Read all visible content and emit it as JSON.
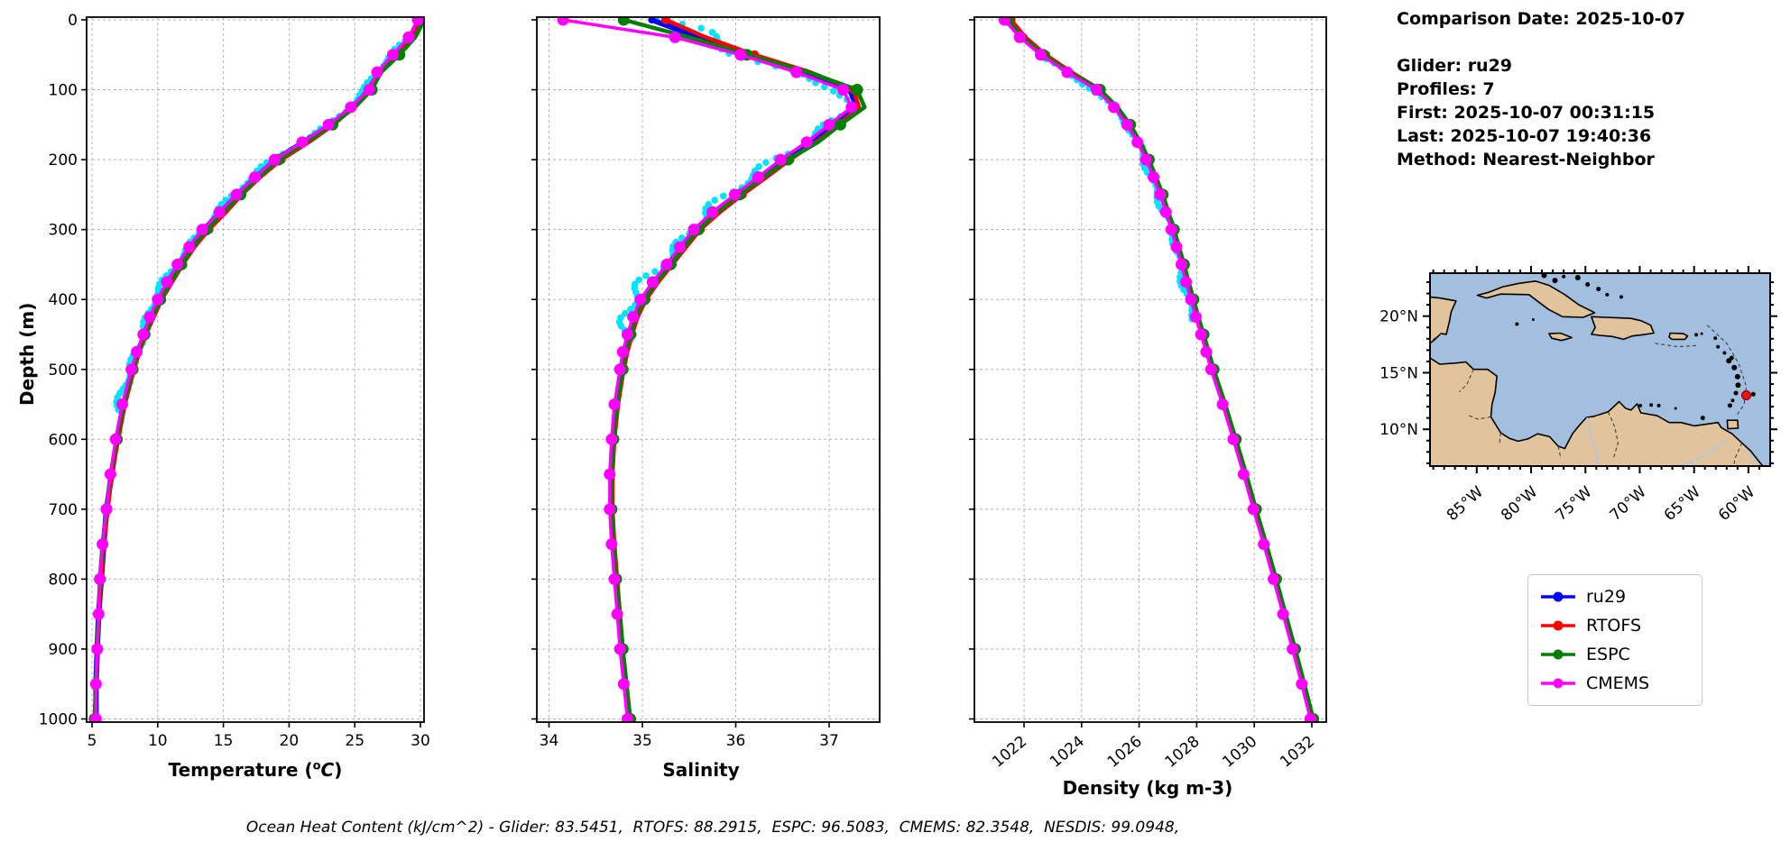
{
  "info": {
    "date": "Comparison Date: 2025-10-07",
    "lines": [
      "Glider: ru29",
      "Profiles: 7",
      "First: 2025-10-07 00:31:15",
      "Last: 2025-10-07 19:40:36",
      "Method: Nearest-Neighbor"
    ]
  },
  "footer": {
    "text": "Ocean Heat Content (kJ/cm^2) - Glider: 83.5451,  RTOFS: 88.2915,  ESPC: 96.5083,  CMEMS: 82.3548,  NESDIS: 99.0948,"
  },
  "chart_data": {
    "type": "line",
    "ylabel": "Depth (m)",
    "ylim": [
      0,
      1000
    ],
    "yticks": [
      0,
      100,
      200,
      300,
      400,
      500,
      600,
      700,
      800,
      900,
      1000
    ],
    "grid": "dashed",
    "legend_position": "lower-right-outside",
    "depths": [
      0,
      25,
      50,
      75,
      100,
      125,
      150,
      175,
      200,
      225,
      250,
      275,
      300,
      325,
      350,
      375,
      400,
      425,
      450,
      475,
      500,
      550,
      600,
      650,
      700,
      750,
      800,
      850,
      900,
      950,
      1000
    ],
    "series": [
      {
        "name": "ru29",
        "color": "#0000ff",
        "lw": 6,
        "marker_r": 4,
        "markevery": 1
      },
      {
        "name": "RTOFS",
        "color": "#ff0000",
        "lw": 4.5,
        "marker_r": 5,
        "markevery": 2
      },
      {
        "name": "ESPC",
        "color": "#008000",
        "lw": 4.5,
        "marker_r": 6.5,
        "markevery": 2
      },
      {
        "name": "CMEMS",
        "color": "#ff00ff",
        "lw": 3.5,
        "marker_r": 6.5,
        "markevery": 1
      }
    ],
    "raw_scatter": {
      "name": "glider raw points",
      "color": "#00e5ff"
    },
    "panels": [
      {
        "key": "temperature",
        "xlabel": "Temperature (°C)",
        "xlabel_parts": {
          "pre": "Temperature (",
          "sup": "o",
          "it": "C",
          "post": ")"
        },
        "xticks": [
          5,
          10,
          15,
          20,
          25,
          30
        ],
        "xlim": [
          4.6,
          30.3
        ],
        "values": {
          "ru29": [
            30.1,
            29.3,
            28.1,
            26.9,
            26.2,
            24.8,
            23.2,
            21.1,
            19.0,
            17.5,
            16.1,
            14.8,
            13.5,
            12.5,
            11.6,
            10.8,
            10.1,
            9.5,
            9.0,
            8.5,
            8.1,
            7.4,
            6.9,
            6.5,
            6.1,
            5.9,
            5.7,
            5.5,
            5.4,
            5.3,
            5.3
          ],
          "RTOFS": [
            30.2,
            29.4,
            28.0,
            26.8,
            26.0,
            24.9,
            23.4,
            21.5,
            19.4,
            17.8,
            16.4,
            15.2,
            13.9,
            12.8,
            11.9,
            11.1,
            10.3,
            9.7,
            9.1,
            8.6,
            8.2,
            7.5,
            7.0,
            6.5,
            6.2,
            5.9,
            5.7,
            5.5,
            5.4,
            5.3,
            5.2
          ],
          "ESPC": [
            30.3,
            29.6,
            28.4,
            27.0,
            26.3,
            25.0,
            23.3,
            21.3,
            19.2,
            17.7,
            16.3,
            15.0,
            13.7,
            12.7,
            11.8,
            11.0,
            10.2,
            9.6,
            9.0,
            8.5,
            8.1,
            7.4,
            6.9,
            6.4,
            6.1,
            5.8,
            5.6,
            5.5,
            5.4,
            5.3,
            5.2
          ],
          "CMEMS": [
            29.8,
            29.1,
            27.9,
            26.7,
            26.1,
            24.7,
            23.0,
            21.0,
            18.9,
            17.4,
            16.0,
            14.7,
            13.4,
            12.4,
            11.5,
            10.7,
            10.0,
            9.4,
            8.9,
            8.4,
            8.0,
            7.3,
            6.8,
            6.4,
            6.1,
            5.8,
            5.6,
            5.5,
            5.4,
            5.3,
            5.3
          ]
        }
      },
      {
        "key": "salinity",
        "xlabel": "Salinity",
        "xticks": [
          34,
          35,
          36,
          37
        ],
        "xlim": [
          33.73,
          37.54
        ],
        "values": {
          "ru29": [
            35.1,
            35.6,
            36.15,
            36.75,
            37.22,
            37.3,
            37.05,
            36.8,
            36.52,
            36.28,
            36.02,
            35.78,
            35.58,
            35.43,
            35.28,
            35.13,
            35.0,
            34.92,
            34.86,
            34.81,
            34.78,
            34.72,
            34.69,
            34.67,
            34.67,
            34.69,
            34.72,
            34.75,
            34.78,
            34.82,
            34.86
          ],
          "RTOFS": [
            35.25,
            35.68,
            36.2,
            36.8,
            37.26,
            37.32,
            37.1,
            36.86,
            36.58,
            36.33,
            36.07,
            35.83,
            35.62,
            35.47,
            35.32,
            35.17,
            35.04,
            34.95,
            34.89,
            34.84,
            34.8,
            34.74,
            34.7,
            34.68,
            34.68,
            34.7,
            34.73,
            34.76,
            34.79,
            34.83,
            34.87
          ],
          "ESPC": [
            34.8,
            35.5,
            36.12,
            36.78,
            37.3,
            37.38,
            37.12,
            36.88,
            36.56,
            36.3,
            36.04,
            35.8,
            35.6,
            35.45,
            35.3,
            35.15,
            35.02,
            34.93,
            34.87,
            34.82,
            34.79,
            34.73,
            34.69,
            34.67,
            34.67,
            34.69,
            34.72,
            34.76,
            34.79,
            34.83,
            34.87
          ],
          "CMEMS": [
            34.15,
            35.35,
            36.05,
            36.65,
            37.15,
            37.24,
            37.0,
            36.76,
            36.48,
            36.24,
            35.99,
            35.75,
            35.55,
            35.4,
            35.26,
            35.11,
            34.98,
            34.9,
            34.84,
            34.79,
            34.76,
            34.7,
            34.67,
            34.65,
            34.65,
            34.67,
            34.7,
            34.73,
            34.76,
            34.8,
            34.84
          ]
        }
      },
      {
        "key": "density",
        "xlabel": "Density (kg m-3)",
        "xticks": [
          1022,
          1024,
          1026,
          1028,
          1030,
          1032
        ],
        "xlim": [
          1020.3,
          1032.5
        ],
        "values": {
          "ru29": [
            1021.5,
            1022.0,
            1022.7,
            1023.6,
            1024.6,
            1025.2,
            1025.65,
            1026.0,
            1026.3,
            1026.55,
            1026.78,
            1026.98,
            1027.17,
            1027.35,
            1027.52,
            1027.68,
            1027.85,
            1028.02,
            1028.2,
            1028.38,
            1028.55,
            1028.95,
            1029.32,
            1029.68,
            1030.02,
            1030.38,
            1030.72,
            1031.05,
            1031.38,
            1031.7,
            1032.0
          ],
          "RTOFS": [
            1021.55,
            1022.05,
            1022.75,
            1023.65,
            1024.63,
            1025.23,
            1025.68,
            1026.03,
            1026.33,
            1026.58,
            1026.81,
            1027.01,
            1027.2,
            1027.38,
            1027.55,
            1027.71,
            1027.88,
            1028.05,
            1028.23,
            1028.41,
            1028.58,
            1028.98,
            1029.35,
            1029.71,
            1030.05,
            1030.41,
            1030.75,
            1031.08,
            1031.41,
            1031.73,
            1032.03
          ],
          "ESPC": [
            1021.42,
            1021.95,
            1022.66,
            1023.58,
            1024.64,
            1025.24,
            1025.69,
            1026.04,
            1026.34,
            1026.59,
            1026.82,
            1027.02,
            1027.21,
            1027.39,
            1027.56,
            1027.72,
            1027.89,
            1028.06,
            1028.24,
            1028.42,
            1028.59,
            1028.99,
            1029.36,
            1029.72,
            1030.06,
            1030.42,
            1030.76,
            1031.09,
            1031.42,
            1031.74,
            1032.05
          ],
          "CMEMS": [
            1021.32,
            1021.85,
            1022.58,
            1023.5,
            1024.52,
            1025.12,
            1025.58,
            1025.94,
            1026.24,
            1026.5,
            1026.73,
            1026.93,
            1027.12,
            1027.3,
            1027.47,
            1027.63,
            1027.8,
            1027.97,
            1028.15,
            1028.33,
            1028.5,
            1028.9,
            1029.27,
            1029.63,
            1029.97,
            1030.33,
            1030.67,
            1031.0,
            1031.33,
            1031.65,
            1031.95
          ]
        }
      }
    ]
  },
  "map": {
    "region": "Caribbean Sea",
    "lat_tick_labels": [
      "20°N",
      "15°N",
      "10°N"
    ],
    "lat_tick_values": [
      20,
      15,
      10
    ],
    "lon_tick_labels": [
      "85°W",
      "80°W",
      "75°W",
      "70°W",
      "65°W",
      "60°W"
    ],
    "lon_tick_values": [
      -85,
      -80,
      -75,
      -70,
      -65,
      -60
    ],
    "glider_marker": {
      "color": "#ee1111",
      "lon": -60.2,
      "lat": 13.0
    },
    "ocean_color": "#a3bfdf",
    "land_color": "#e2c49c"
  }
}
